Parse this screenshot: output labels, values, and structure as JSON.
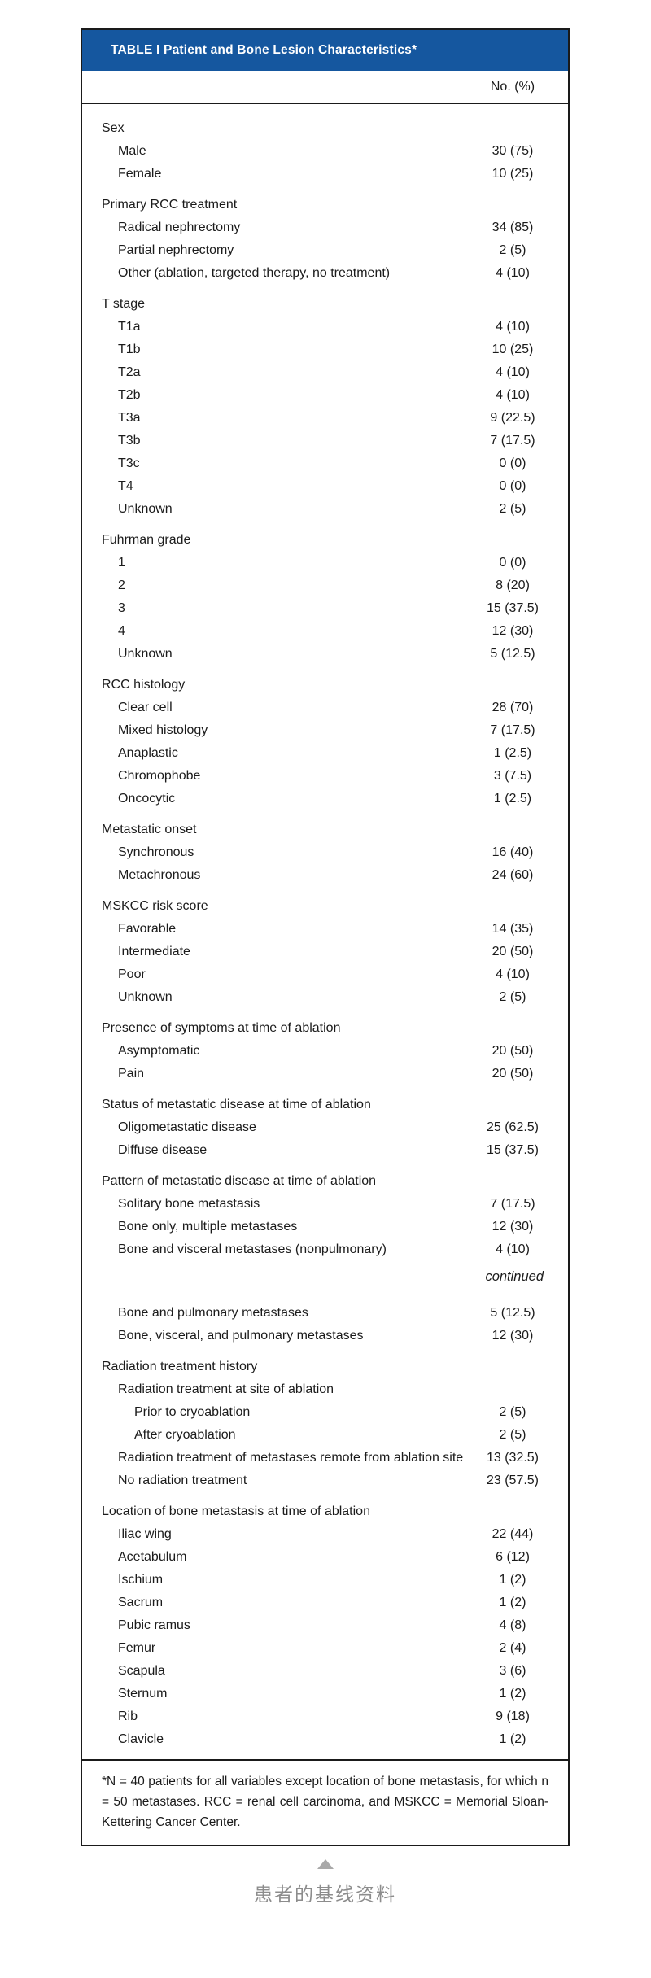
{
  "colors": {
    "header_bar_blue": "#15579f",
    "border_black": "#1a1a1a",
    "caption_gray": "#8c8c8c",
    "triangle_gray": "#a9a9a9"
  },
  "table": {
    "title": "TABLE I Patient and Bone Lesion Characteristics*",
    "column_header": "No. (%)",
    "sections": [
      {
        "header": "Sex",
        "rows": [
          {
            "label": "Male",
            "value": "30 (75)",
            "indent": 1
          },
          {
            "label": "Female",
            "value": "10 (25)",
            "indent": 1
          }
        ]
      },
      {
        "header": "Primary RCC treatment",
        "rows": [
          {
            "label": "Radical nephrectomy",
            "value": "34 (85)",
            "indent": 1
          },
          {
            "label": "Partial nephrectomy",
            "value": "2 (5)",
            "indent": 1
          },
          {
            "label": "Other (ablation, targeted therapy, no treatment)",
            "value": "4 (10)",
            "indent": 1
          }
        ]
      },
      {
        "header": "T stage",
        "rows": [
          {
            "label": "T1a",
            "value": "4 (10)",
            "indent": 1
          },
          {
            "label": "T1b",
            "value": "10 (25)",
            "indent": 1
          },
          {
            "label": "T2a",
            "value": "4 (10)",
            "indent": 1
          },
          {
            "label": "T2b",
            "value": "4 (10)",
            "indent": 1
          },
          {
            "label": "T3a",
            "value": "9 (22.5)",
            "indent": 1
          },
          {
            "label": "T3b",
            "value": "7 (17.5)",
            "indent": 1
          },
          {
            "label": "T3c",
            "value": "0 (0)",
            "indent": 1
          },
          {
            "label": "T4",
            "value": "0 (0)",
            "indent": 1
          },
          {
            "label": "Unknown",
            "value": "2 (5)",
            "indent": 1
          }
        ]
      },
      {
        "header": "Fuhrman grade",
        "rows": [
          {
            "label": "1",
            "value": "0 (0)",
            "indent": 1
          },
          {
            "label": "2",
            "value": "8 (20)",
            "indent": 1
          },
          {
            "label": "3",
            "value": "15 (37.5)",
            "indent": 1
          },
          {
            "label": "4",
            "value": "12 (30)",
            "indent": 1
          },
          {
            "label": "Unknown",
            "value": "5 (12.5)",
            "indent": 1
          }
        ]
      },
      {
        "header": "RCC histology",
        "rows": [
          {
            "label": "Clear cell",
            "value": "28 (70)",
            "indent": 1
          },
          {
            "label": "Mixed histology",
            "value": "7 (17.5)",
            "indent": 1
          },
          {
            "label": "Anaplastic",
            "value": "1 (2.5)",
            "indent": 1
          },
          {
            "label": "Chromophobe",
            "value": "3 (7.5)",
            "indent": 1
          },
          {
            "label": "Oncocytic",
            "value": "1 (2.5)",
            "indent": 1
          }
        ]
      },
      {
        "header": "Metastatic onset",
        "rows": [
          {
            "label": "Synchronous",
            "value": "16 (40)",
            "indent": 1
          },
          {
            "label": "Metachronous",
            "value": "24 (60)",
            "indent": 1
          }
        ]
      },
      {
        "header": "MSKCC risk score",
        "rows": [
          {
            "label": "Favorable",
            "value": "14 (35)",
            "indent": 1
          },
          {
            "label": "Intermediate",
            "value": "20 (50)",
            "indent": 1
          },
          {
            "label": "Poor",
            "value": "4 (10)",
            "indent": 1
          },
          {
            "label": "Unknown",
            "value": "2 (5)",
            "indent": 1
          }
        ]
      },
      {
        "header": "Presence of symptoms at time of ablation",
        "rows": [
          {
            "label": "Asymptomatic",
            "value": "20 (50)",
            "indent": 1
          },
          {
            "label": "Pain",
            "value": "20 (50)",
            "indent": 1
          }
        ]
      },
      {
        "header": "Status of metastatic disease at time of ablation",
        "rows": [
          {
            "label": "Oligometastatic disease",
            "value": "25 (62.5)",
            "indent": 1
          },
          {
            "label": "Diffuse disease",
            "value": "15 (37.5)",
            "indent": 1
          }
        ]
      },
      {
        "header": "Pattern of metastatic disease at time of ablation",
        "rows": [
          {
            "label": "Solitary bone metastasis",
            "value": "7 (17.5)",
            "indent": 1
          },
          {
            "label": "Bone only, multiple metastases",
            "value": "12 (30)",
            "indent": 1
          },
          {
            "label": "Bone and visceral metastases (nonpulmonary)",
            "value": "4 (10)",
            "indent": 1
          }
        ],
        "continued_marker": "continued",
        "rows_after_break": [
          {
            "label": "Bone and pulmonary metastases",
            "value": "5 (12.5)",
            "indent": 1
          },
          {
            "label": "Bone, visceral, and pulmonary metastases",
            "value": "12 (30)",
            "indent": 1
          }
        ]
      },
      {
        "header": "Radiation treatment history",
        "rows": [
          {
            "label": "Radiation treatment at site of ablation",
            "value": "",
            "indent": 1
          },
          {
            "label": "Prior to cryoablation",
            "value": "2 (5)",
            "indent": 2
          },
          {
            "label": "After cryoablation",
            "value": "2 (5)",
            "indent": 2
          },
          {
            "label": "Radiation treatment of metastases remote from ablation site",
            "value": "13 (32.5)",
            "indent": 1
          },
          {
            "label": "No radiation treatment",
            "value": "23 (57.5)",
            "indent": 1
          }
        ]
      },
      {
        "header": "Location of bone metastasis at time of ablation",
        "rows": [
          {
            "label": "Iliac wing",
            "value": "22 (44)",
            "indent": 1
          },
          {
            "label": "Acetabulum",
            "value": "6 (12)",
            "indent": 1
          },
          {
            "label": "Ischium",
            "value": "1 (2)",
            "indent": 1
          },
          {
            "label": "Sacrum",
            "value": "1 (2)",
            "indent": 1
          },
          {
            "label": "Pubic ramus",
            "value": "4 (8)",
            "indent": 1
          },
          {
            "label": "Femur",
            "value": "2 (4)",
            "indent": 1
          },
          {
            "label": "Scapula",
            "value": "3 (6)",
            "indent": 1
          },
          {
            "label": "Sternum",
            "value": "1 (2)",
            "indent": 1
          },
          {
            "label": "Rib",
            "value": "9 (18)",
            "indent": 1
          },
          {
            "label": "Clavicle",
            "value": "1 (2)",
            "indent": 1
          }
        ]
      }
    ],
    "footnote": "*N = 40 patients for all variables except location of bone metastasis, for which n = 50 metastases. RCC = renal cell carcinoma, and MSKCC = Memorial Sloan-Kettering Cancer Center."
  },
  "caption": {
    "icon": "triangle-up-icon",
    "text": "患者的基线资料"
  }
}
